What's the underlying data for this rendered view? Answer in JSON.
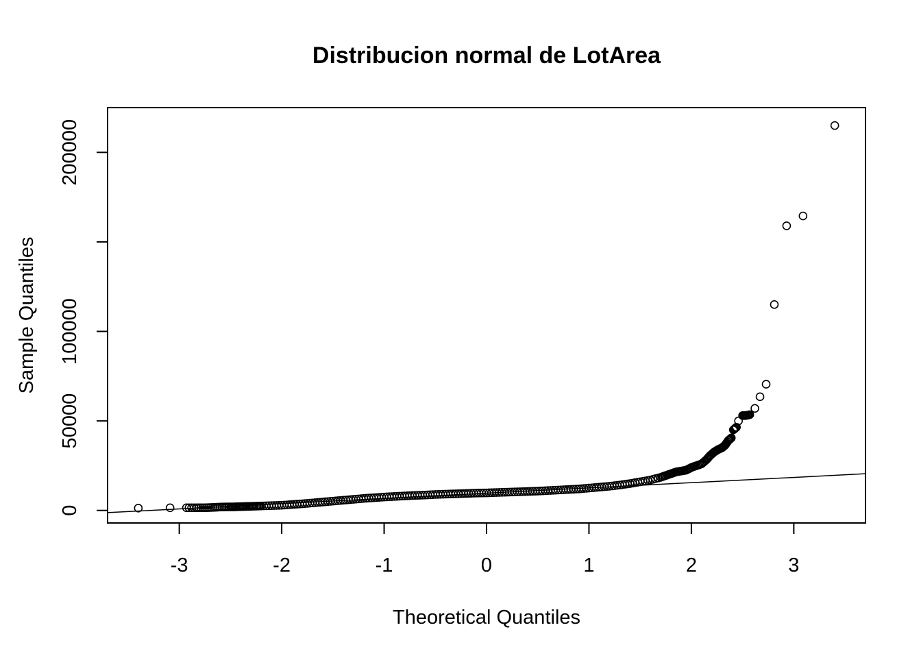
{
  "chart_data": {
    "type": "scatter",
    "title": "Distribucion normal de LotArea",
    "xlabel": "Theoretical Quantiles",
    "ylabel": "Sample Quantiles",
    "xlim": [
      -3.7,
      3.7
    ],
    "ylim": [
      -7000,
      225000
    ],
    "x_ticks": [
      -3,
      -2,
      -1,
      0,
      1,
      2,
      3
    ],
    "x_tick_labels": [
      "-3",
      "-2",
      "-1",
      "0",
      "1",
      "2",
      "3"
    ],
    "y_ticks": [
      0,
      50000,
      100000,
      150000,
      200000
    ],
    "y_tick_labels": [
      "0",
      "50000",
      "100000",
      "",
      "200000"
    ],
    "grid": false,
    "reference_line": {
      "x": [
        -3.7,
        3.7
      ],
      "y": [
        -1200,
        20500
      ]
    },
    "series": [
      {
        "marker": "open-circle",
        "points": [
          [
            -3.4,
            1300
          ],
          [
            -3.09,
            1500
          ],
          [
            -2.93,
            1500
          ],
          [
            -2.83,
            1500
          ],
          [
            -2.75,
            1500
          ],
          [
            -2.67,
            1700
          ],
          [
            -2.6,
            1900
          ],
          [
            -2.53,
            2000
          ],
          [
            -2.47,
            2000
          ],
          [
            -2.42,
            2100
          ],
          [
            -2.36,
            2200
          ],
          [
            -2.31,
            2300
          ],
          [
            -2.25,
            2400
          ],
          [
            -2.2,
            2500
          ],
          [
            -2.1,
            2700
          ],
          [
            -2.0,
            2900
          ],
          [
            -1.9,
            3300
          ],
          [
            -1.8,
            3700
          ],
          [
            -1.7,
            4200
          ],
          [
            -1.6,
            4700
          ],
          [
            -1.5,
            5200
          ],
          [
            -1.4,
            5700
          ],
          [
            -1.3,
            6200
          ],
          [
            -1.2,
            6700
          ],
          [
            -1.1,
            7100
          ],
          [
            -1.0,
            7500
          ],
          [
            -0.9,
            7800
          ],
          [
            -0.8,
            8100
          ],
          [
            -0.7,
            8400
          ],
          [
            -0.6,
            8600
          ],
          [
            -0.5,
            8900
          ],
          [
            -0.4,
            9100
          ],
          [
            -0.3,
            9300
          ],
          [
            -0.2,
            9500
          ],
          [
            -0.1,
            9700
          ],
          [
            0.0,
            9800
          ],
          [
            0.1,
            10000
          ],
          [
            0.2,
            10200
          ],
          [
            0.3,
            10400
          ],
          [
            0.4,
            10600
          ],
          [
            0.5,
            10800
          ],
          [
            0.6,
            11100
          ],
          [
            0.7,
            11400
          ],
          [
            0.8,
            11700
          ],
          [
            0.9,
            12000
          ],
          [
            1.0,
            12500
          ],
          [
            1.1,
            13000
          ],
          [
            1.2,
            13500
          ],
          [
            1.3,
            14200
          ],
          [
            1.4,
            15000
          ],
          [
            1.5,
            16000
          ],
          [
            1.6,
            17000
          ],
          [
            1.7,
            18500
          ],
          [
            1.75,
            19500
          ],
          [
            1.8,
            20500
          ],
          [
            1.85,
            21500
          ],
          [
            1.9,
            22000
          ],
          [
            1.95,
            22500
          ],
          [
            2.0,
            24000
          ],
          [
            2.05,
            25000
          ],
          [
            2.1,
            26000
          ],
          [
            2.15,
            28500
          ],
          [
            2.18,
            30500
          ],
          [
            2.22,
            32500
          ],
          [
            2.26,
            34000
          ],
          [
            2.3,
            35000
          ],
          [
            2.33,
            36500
          ],
          [
            2.36,
            39000
          ],
          [
            2.39,
            40500
          ],
          [
            2.41,
            45000
          ],
          [
            2.44,
            46500
          ],
          [
            2.46,
            50000
          ],
          [
            2.5,
            53000
          ],
          [
            2.53,
            53000
          ],
          [
            2.57,
            53500
          ],
          [
            2.62,
            57000
          ],
          [
            2.67,
            63500
          ],
          [
            2.73,
            70500
          ],
          [
            2.81,
            115000
          ],
          [
            2.93,
            159000
          ],
          [
            3.09,
            164500
          ],
          [
            3.4,
            215000
          ]
        ]
      }
    ]
  }
}
